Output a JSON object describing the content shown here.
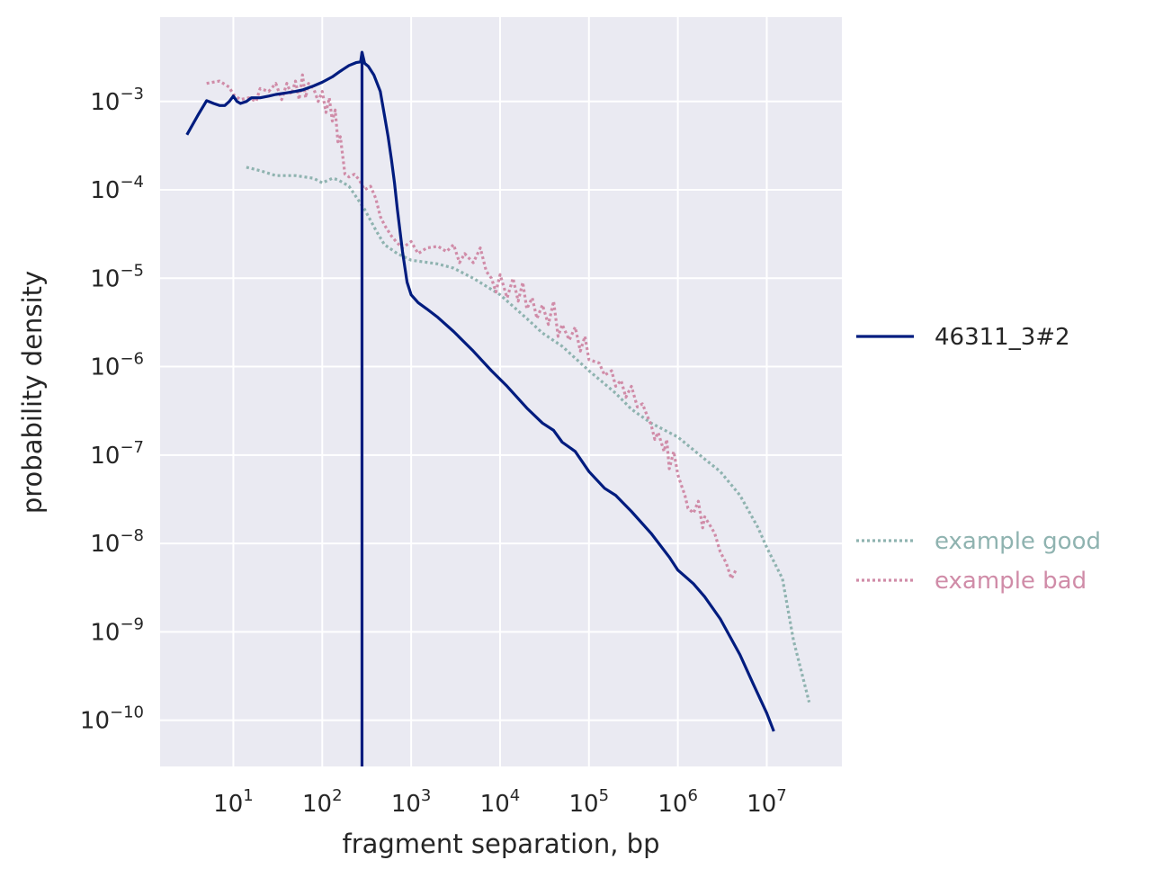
{
  "chart_data": {
    "type": "line",
    "xlabel": "fragment separation, bp",
    "ylabel": "probability density",
    "xscale": "log",
    "yscale": "log",
    "xlim": [
      1.5,
      70000000
    ],
    "ylim": [
      3e-11,
      0.009
    ],
    "grid": true,
    "x_ticks": [
      {
        "base": "10",
        "exp": "1",
        "value": 10
      },
      {
        "base": "10",
        "exp": "2",
        "value": 100
      },
      {
        "base": "10",
        "exp": "3",
        "value": 1000
      },
      {
        "base": "10",
        "exp": "4",
        "value": 10000
      },
      {
        "base": "10",
        "exp": "5",
        "value": 100000
      },
      {
        "base": "10",
        "exp": "6",
        "value": 1000000
      },
      {
        "base": "10",
        "exp": "7",
        "value": 10000000
      }
    ],
    "y_ticks": [
      {
        "base": "10",
        "exp": "−3",
        "value": 0.001
      },
      {
        "base": "10",
        "exp": "−4",
        "value": 0.0001
      },
      {
        "base": "10",
        "exp": "−5",
        "value": 1e-05
      },
      {
        "base": "10",
        "exp": "−6",
        "value": 1e-06
      },
      {
        "base": "10",
        "exp": "−7",
        "value": 1e-07
      },
      {
        "base": "10",
        "exp": "−8",
        "value": 1e-08
      },
      {
        "base": "10",
        "exp": "−9",
        "value": 1e-09
      },
      {
        "base": "10",
        "exp": "−10",
        "value": 1e-10
      }
    ],
    "vline": {
      "x": 280,
      "color": "#001c7f"
    },
    "legend_position": "right",
    "series": [
      {
        "name": "46311_3#2",
        "color": "#001c7f",
        "style": "solid",
        "points": [
          [
            3,
            0.00042
          ],
          [
            4,
            0.0007
          ],
          [
            5,
            0.00102
          ],
          [
            6,
            0.00095
          ],
          [
            7,
            0.0009
          ],
          [
            8,
            0.0009
          ],
          [
            9,
            0.001
          ],
          [
            10,
            0.00115
          ],
          [
            11,
            0.001
          ],
          [
            12,
            0.00095
          ],
          [
            14,
            0.001
          ],
          [
            16,
            0.0011
          ],
          [
            20,
            0.0011
          ],
          [
            25,
            0.00115
          ],
          [
            30,
            0.0012
          ],
          [
            40,
            0.00125
          ],
          [
            50,
            0.0013
          ],
          [
            60,
            0.00135
          ],
          [
            80,
            0.0015
          ],
          [
            100,
            0.00165
          ],
          [
            130,
            0.0019
          ],
          [
            160,
            0.0022
          ],
          [
            200,
            0.00255
          ],
          [
            240,
            0.00275
          ],
          [
            270,
            0.0028
          ],
          [
            280,
            0.0036
          ],
          [
            300,
            0.0027
          ],
          [
            330,
            0.0025
          ],
          [
            380,
            0.002
          ],
          [
            450,
            0.0013
          ],
          [
            500,
            0.0007
          ],
          [
            550,
            0.0004
          ],
          [
            600,
            0.00022
          ],
          [
            650,
            0.00012
          ],
          [
            700,
            6e-05
          ],
          [
            800,
            2e-05
          ],
          [
            900,
            9e-06
          ],
          [
            1000,
            6.5e-06
          ],
          [
            1200,
            5.3e-06
          ],
          [
            1500,
            4.5e-06
          ],
          [
            2000,
            3.6e-06
          ],
          [
            3000,
            2.5e-06
          ],
          [
            5000,
            1.5e-06
          ],
          [
            8000,
            9e-07
          ],
          [
            12000,
            6e-07
          ],
          [
            20000,
            3.4e-07
          ],
          [
            30000,
            2.3e-07
          ],
          [
            40000,
            1.9e-07
          ],
          [
            50000,
            1.4e-07
          ],
          [
            70000,
            1.1e-07
          ],
          [
            100000,
            6.5e-08
          ],
          [
            150000,
            4.2e-08
          ],
          [
            200000,
            3.5e-08
          ],
          [
            300000,
            2.3e-08
          ],
          [
            500000,
            1.3e-08
          ],
          [
            800000,
            7e-09
          ],
          [
            1000000,
            5e-09
          ],
          [
            1500000,
            3.5e-09
          ],
          [
            2000000,
            2.5e-09
          ],
          [
            3000000,
            1.4e-09
          ],
          [
            5000000,
            5.5e-10
          ],
          [
            7000000,
            2.6e-10
          ],
          [
            10000000,
            1.2e-10
          ],
          [
            12000000,
            7.5e-11
          ]
        ]
      },
      {
        "name": "example good",
        "color": "#8fb3b0",
        "style": "dotted",
        "points": [
          [
            14,
            0.00018
          ],
          [
            20,
            0.000165
          ],
          [
            30,
            0.000145
          ],
          [
            50,
            0.000145
          ],
          [
            80,
            0.000135
          ],
          [
            100,
            0.00012
          ],
          [
            130,
            0.000135
          ],
          [
            150,
            0.00013
          ],
          [
            200,
            0.00011
          ],
          [
            300,
            6e-05
          ],
          [
            400,
            3.5e-05
          ],
          [
            500,
            2.4e-05
          ],
          [
            700,
            1.9e-05
          ],
          [
            1000,
            1.6e-05
          ],
          [
            2000,
            1.45e-05
          ],
          [
            3000,
            1.3e-05
          ],
          [
            5000,
            1e-05
          ],
          [
            10000,
            6.5e-06
          ],
          [
            20000,
            3.5e-06
          ],
          [
            30000,
            2.4e-06
          ],
          [
            50000,
            1.7e-06
          ],
          [
            100000,
            9e-07
          ],
          [
            200000,
            5e-07
          ],
          [
            300000,
            3.3e-07
          ],
          [
            500000,
            2.3e-07
          ],
          [
            1000000,
            1.6e-07
          ],
          [
            2000000,
            9e-08
          ],
          [
            3000000,
            6.5e-08
          ],
          [
            5000000,
            3.5e-08
          ],
          [
            8000000,
            1.5e-08
          ],
          [
            10000000,
            9e-09
          ],
          [
            15000000,
            4e-09
          ],
          [
            20000000,
            8e-10
          ],
          [
            30000000,
            1.6e-10
          ]
        ]
      },
      {
        "name": "example bad",
        "color": "#d08ca8",
        "style": "dotted",
        "points": [
          [
            5,
            0.0016
          ],
          [
            7,
            0.0017
          ],
          [
            9,
            0.00145
          ],
          [
            10,
            0.0012
          ],
          [
            12,
            0.00105
          ],
          [
            15,
            0.0011
          ],
          [
            18,
            0.001
          ],
          [
            20,
            0.0014
          ],
          [
            25,
            0.0013
          ],
          [
            30,
            0.0016
          ],
          [
            35,
            0.00105
          ],
          [
            40,
            0.0016
          ],
          [
            45,
            0.0012
          ],
          [
            50,
            0.0017
          ],
          [
            55,
            0.00105
          ],
          [
            60,
            0.002
          ],
          [
            65,
            0.0011
          ],
          [
            70,
            0.0016
          ],
          [
            80,
            0.0014
          ],
          [
            90,
            0.001
          ],
          [
            100,
            0.0013
          ],
          [
            110,
            0.00075
          ],
          [
            120,
            0.0011
          ],
          [
            130,
            0.0006
          ],
          [
            140,
            0.0008
          ],
          [
            150,
            0.00035
          ],
          [
            160,
            0.0004
          ],
          [
            180,
            0.00015
          ],
          [
            200,
            0.00014
          ],
          [
            230,
            0.00015
          ],
          [
            260,
            0.00013
          ],
          [
            300,
            0.0001
          ],
          [
            350,
            0.00011
          ],
          [
            400,
            8e-05
          ],
          [
            450,
            5e-05
          ],
          [
            500,
            4e-05
          ],
          [
            600,
            3e-05
          ],
          [
            700,
            2.5e-05
          ],
          [
            800,
            2.2e-05
          ],
          [
            1000,
            2.6e-05
          ],
          [
            1200,
            1.9e-05
          ],
          [
            1500,
            2.2e-05
          ],
          [
            2000,
            2.3e-05
          ],
          [
            2500,
            2e-05
          ],
          [
            3000,
            2.4e-05
          ],
          [
            3500,
            1.5e-05
          ],
          [
            4000,
            1.9e-05
          ],
          [
            5000,
            1.5e-05
          ],
          [
            6000,
            2.2e-05
          ],
          [
            7000,
            1.2e-05
          ],
          [
            8000,
            1e-05
          ],
          [
            9000,
            7e-06
          ],
          [
            10000,
            1.1e-05
          ],
          [
            12000,
            6e-06
          ],
          [
            14000,
            1e-05
          ],
          [
            16000,
            5.5e-06
          ],
          [
            18000,
            9e-06
          ],
          [
            20000,
            4.5e-06
          ],
          [
            23000,
            6e-06
          ],
          [
            26000,
            3.5e-06
          ],
          [
            30000,
            5e-06
          ],
          [
            35000,
            3e-06
          ],
          [
            40000,
            5.5e-06
          ],
          [
            45000,
            2.2e-06
          ],
          [
            50000,
            3e-06
          ],
          [
            60000,
            2e-06
          ],
          [
            70000,
            2.8e-06
          ],
          [
            80000,
            1.5e-06
          ],
          [
            90000,
            2.2e-06
          ],
          [
            100000,
            1.2e-06
          ],
          [
            130000,
            1.1e-06
          ],
          [
            150000,
            8e-07
          ],
          [
            180000,
            9e-07
          ],
          [
            200000,
            6e-07
          ],
          [
            230000,
            7e-07
          ],
          [
            260000,
            4.5e-07
          ],
          [
            300000,
            6e-07
          ],
          [
            350000,
            3.5e-07
          ],
          [
            400000,
            3.8e-07
          ],
          [
            450000,
            2.8e-07
          ],
          [
            500000,
            2.2e-07
          ],
          [
            550000,
            1.5e-07
          ],
          [
            600000,
            1.8e-07
          ],
          [
            700000,
            1.1e-07
          ],
          [
            750000,
            1.5e-07
          ],
          [
            800000,
            7e-08
          ],
          [
            900000,
            1.1e-07
          ],
          [
            1000000,
            6e-08
          ],
          [
            1100000,
            4.5e-08
          ],
          [
            1200000,
            3.5e-08
          ],
          [
            1300000,
            2.5e-08
          ],
          [
            1500000,
            2.2e-08
          ],
          [
            1700000,
            3e-08
          ],
          [
            1900000,
            1.5e-08
          ],
          [
            2000000,
            2e-08
          ],
          [
            2300000,
            1.6e-08
          ],
          [
            2600000,
            1.3e-08
          ],
          [
            3000000,
            8e-09
          ],
          [
            3500000,
            6e-09
          ],
          [
            4000000,
            4e-09
          ],
          [
            4500000,
            5e-09
          ]
        ]
      }
    ]
  }
}
